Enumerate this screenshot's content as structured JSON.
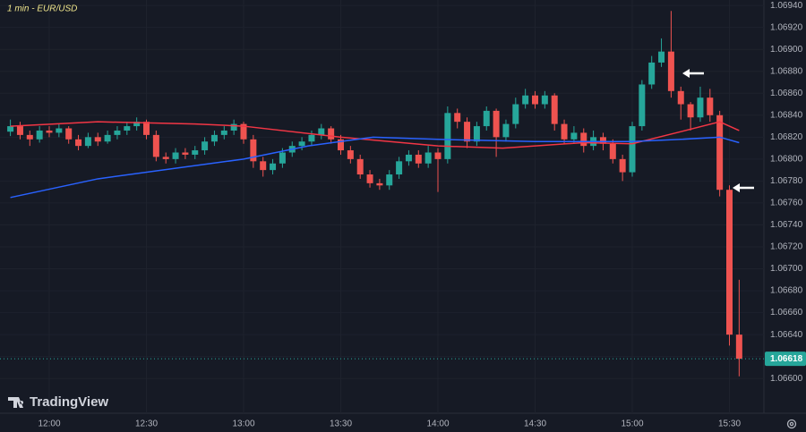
{
  "chart_data": {
    "type": "candlestick",
    "title": "1 min - EUR/USD",
    "watermark": "TradingView",
    "x": [
      "11:48",
      "11:51",
      "11:54",
      "11:57",
      "12:00",
      "12:03",
      "12:06",
      "12:09",
      "12:12",
      "12:15",
      "12:18",
      "12:21",
      "12:24",
      "12:27",
      "12:30",
      "12:33",
      "12:36",
      "12:39",
      "12:42",
      "12:45",
      "12:48",
      "12:51",
      "12:54",
      "12:57",
      "13:00",
      "13:03",
      "13:06",
      "13:09",
      "13:12",
      "13:15",
      "13:18",
      "13:21",
      "13:24",
      "13:27",
      "13:30",
      "13:33",
      "13:36",
      "13:39",
      "13:42",
      "13:45",
      "13:48",
      "13:51",
      "13:54",
      "13:57",
      "14:00",
      "14:03",
      "14:06",
      "14:09",
      "14:12",
      "14:15",
      "14:18",
      "14:21",
      "14:24",
      "14:27",
      "14:30",
      "14:33",
      "14:36",
      "14:39",
      "14:42",
      "14:45",
      "14:48",
      "14:51",
      "14:54",
      "14:57",
      "15:00",
      "15:03",
      "15:06",
      "15:09",
      "15:12",
      "15:15",
      "15:18",
      "15:21",
      "15:24",
      "15:27",
      "15:30",
      "15:33"
    ],
    "open": [
      1.06825,
      1.0683,
      1.06822,
      1.06818,
      1.06826,
      1.06824,
      1.06828,
      1.06818,
      1.06812,
      1.0682,
      1.06816,
      1.06822,
      1.06826,
      1.0683,
      1.06834,
      1.06822,
      1.06802,
      1.068,
      1.06806,
      1.06804,
      1.06808,
      1.06816,
      1.06822,
      1.06826,
      1.06832,
      1.06818,
      1.06798,
      1.0679,
      1.06796,
      1.06806,
      1.06812,
      1.06816,
      1.06822,
      1.06828,
      1.06818,
      1.06808,
      1.068,
      1.06786,
      1.06778,
      1.06776,
      1.06786,
      1.06798,
      1.06804,
      1.06796,
      1.06806,
      1.068,
      1.06842,
      1.06834,
      1.06816,
      1.0683,
      1.06844,
      1.0682,
      1.06832,
      1.0685,
      1.06858,
      1.0685,
      1.06858,
      1.06832,
      1.06818,
      1.06824,
      1.06812,
      1.0682,
      1.06814,
      1.068,
      1.06788,
      1.0683,
      1.06868,
      1.06888,
      1.06898,
      1.06862,
      1.0685,
      1.06838,
      1.06856,
      1.0684,
      1.06772,
      1.0664
    ],
    "high": [
      1.06836,
      1.06834,
      1.06826,
      1.0683,
      1.0683,
      1.06832,
      1.0683,
      1.06822,
      1.06824,
      1.06824,
      1.06826,
      1.0683,
      1.06834,
      1.06838,
      1.06836,
      1.06826,
      1.06806,
      1.0681,
      1.0681,
      1.06812,
      1.0682,
      1.06826,
      1.0683,
      1.06836,
      1.06834,
      1.06822,
      1.06802,
      1.068,
      1.0681,
      1.06816,
      1.0682,
      1.06826,
      1.06832,
      1.0683,
      1.06822,
      1.06812,
      1.06804,
      1.0679,
      1.06782,
      1.0679,
      1.06802,
      1.06808,
      1.06808,
      1.06812,
      1.0681,
      1.06848,
      1.06846,
      1.06838,
      1.06834,
      1.06848,
      1.06846,
      1.06836,
      1.06856,
      1.06864,
      1.06862,
      1.06862,
      1.0686,
      1.06836,
      1.0683,
      1.06828,
      1.06826,
      1.06824,
      1.06818,
      1.06804,
      1.06834,
      1.06872,
      1.06894,
      1.0691,
      1.06935,
      1.06866,
      1.06852,
      1.06866,
      1.06864,
      1.06844,
      1.06776,
      1.0669
    ],
    "low": [
      1.06821,
      1.06818,
      1.06812,
      1.06815,
      1.0682,
      1.0682,
      1.06814,
      1.06808,
      1.0681,
      1.06812,
      1.06814,
      1.06818,
      1.06822,
      1.06826,
      1.06818,
      1.06798,
      1.06796,
      1.06796,
      1.068,
      1.068,
      1.06804,
      1.06812,
      1.06818,
      1.06822,
      1.06814,
      1.06792,
      1.06784,
      1.06786,
      1.06792,
      1.06802,
      1.06808,
      1.06812,
      1.06818,
      1.06814,
      1.06804,
      1.06796,
      1.06782,
      1.06774,
      1.06772,
      1.06772,
      1.06782,
      1.06794,
      1.06792,
      1.06792,
      1.0677,
      1.06796,
      1.06828,
      1.0681,
      1.06812,
      1.06826,
      1.06802,
      1.06816,
      1.06828,
      1.06846,
      1.06846,
      1.06846,
      1.06826,
      1.06814,
      1.06814,
      1.06806,
      1.06808,
      1.06808,
      1.06796,
      1.0678,
      1.06784,
      1.06826,
      1.06864,
      1.06884,
      1.06856,
      1.06836,
      1.06826,
      1.06834,
      1.06834,
      1.06766,
      1.0663,
      1.06602
    ],
    "close": [
      1.0683,
      1.06822,
      1.06818,
      1.06826,
      1.06824,
      1.06828,
      1.06818,
      1.06812,
      1.0682,
      1.06816,
      1.06822,
      1.06826,
      1.0683,
      1.06834,
      1.06822,
      1.06802,
      1.068,
      1.06806,
      1.06804,
      1.06808,
      1.06816,
      1.06822,
      1.06826,
      1.06832,
      1.06818,
      1.06798,
      1.0679,
      1.06796,
      1.06806,
      1.06812,
      1.06816,
      1.06822,
      1.06828,
      1.06818,
      1.06808,
      1.068,
      1.06786,
      1.06778,
      1.06776,
      1.06786,
      1.06798,
      1.06804,
      1.06796,
      1.06806,
      1.068,
      1.06842,
      1.06834,
      1.06816,
      1.0683,
      1.06844,
      1.0682,
      1.06832,
      1.0685,
      1.06858,
      1.0685,
      1.06858,
      1.06832,
      1.06818,
      1.06824,
      1.06812,
      1.0682,
      1.06814,
      1.068,
      1.06788,
      1.0683,
      1.06868,
      1.06888,
      1.06898,
      1.06862,
      1.0685,
      1.06838,
      1.06856,
      1.0684,
      1.06772,
      1.0664,
      1.06618
    ],
    "up_color": "#26a69a",
    "down_color": "#ef5350",
    "lines": [
      {
        "color": "#f23645",
        "x": [
          "11:48",
          "12:15",
          "12:45",
          "13:00",
          "13:30",
          "14:00",
          "14:20",
          "14:45",
          "15:00",
          "15:15",
          "15:27",
          "15:33"
        ],
        "values": [
          1.0683,
          1.06834,
          1.06832,
          1.0683,
          1.0682,
          1.06812,
          1.0681,
          1.06815,
          1.06814,
          1.06825,
          1.06834,
          1.06826
        ]
      },
      {
        "color": "#2962ff",
        "x": [
          "11:48",
          "12:15",
          "12:40",
          "13:00",
          "13:20",
          "13:40",
          "14:00",
          "14:30",
          "15:00",
          "15:15",
          "15:27",
          "15:33"
        ],
        "values": [
          1.06765,
          1.06782,
          1.06792,
          1.068,
          1.06812,
          1.0682,
          1.06818,
          1.06816,
          1.06816,
          1.06818,
          1.0682,
          1.06815
        ]
      }
    ],
    "last_price": {
      "value": 1.06618,
      "label": "1.06618"
    },
    "ylim": [
      1.0657,
      1.06945
    ],
    "yticks": [
      {
        "value": 1.066,
        "label": "1.06600"
      },
      {
        "value": 1.0662,
        "label": "1.06620"
      },
      {
        "value": 1.0664,
        "label": "1.06640"
      },
      {
        "value": 1.0666,
        "label": "1.06660"
      },
      {
        "value": 1.0668,
        "label": "1.06680"
      },
      {
        "value": 1.067,
        "label": "1.06700"
      },
      {
        "value": 1.0672,
        "label": "1.06720"
      },
      {
        "value": 1.0674,
        "label": "1.06740"
      },
      {
        "value": 1.0676,
        "label": "1.06760"
      },
      {
        "value": 1.0678,
        "label": "1.06780"
      },
      {
        "value": 1.068,
        "label": "1.06800"
      },
      {
        "value": 1.0682,
        "label": "1.06820"
      },
      {
        "value": 1.0684,
        "label": "1.06840"
      },
      {
        "value": 1.0686,
        "label": "1.06860"
      },
      {
        "value": 1.0688,
        "label": "1.06880"
      },
      {
        "value": 1.069,
        "label": "1.06900"
      },
      {
        "value": 1.0692,
        "label": "1.06920"
      },
      {
        "value": 1.0694,
        "label": "1.06940"
      }
    ],
    "xticks": [
      "12:00",
      "12:30",
      "13:00",
      "13:30",
      "14:00",
      "14:30",
      "15:00",
      "15:30"
    ],
    "grid": true
  }
}
